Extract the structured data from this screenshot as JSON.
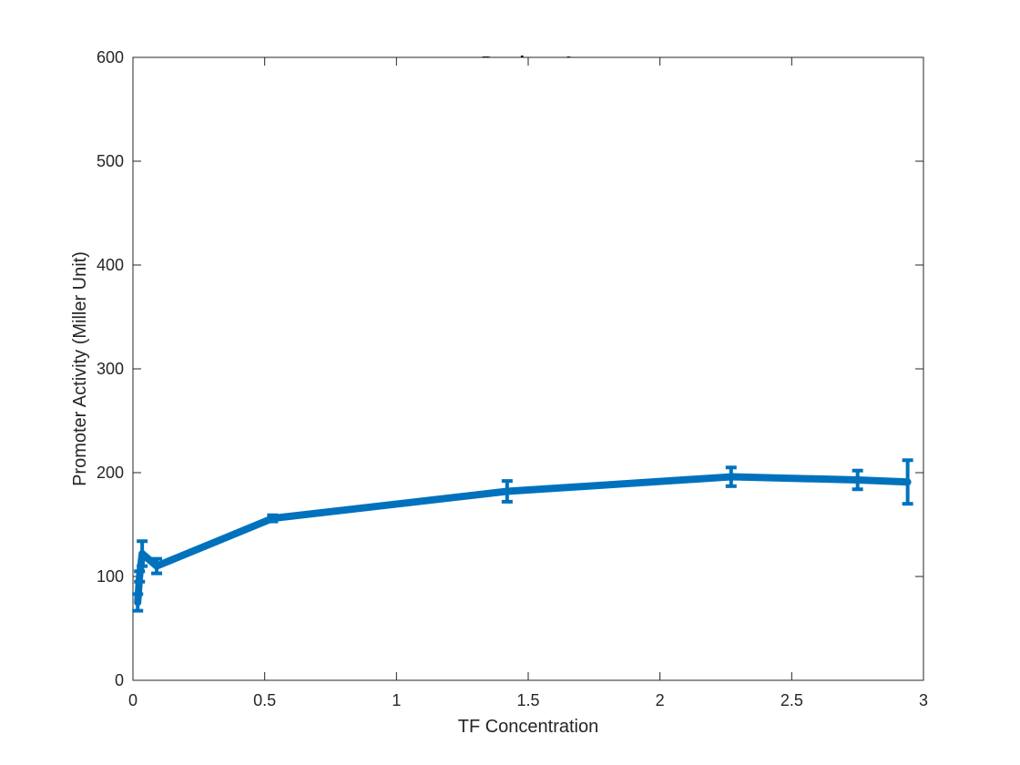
{
  "chart_data": {
    "type": "line",
    "title": "Pv-sigmaA",
    "xlabel": "TF Concentration",
    "ylabel": "Promoter Activity (Miller Unit)",
    "xlim": [
      0,
      3
    ],
    "ylim": [
      0,
      600
    ],
    "x_ticks": [
      0,
      0.5,
      1,
      1.5,
      2,
      2.5,
      3
    ],
    "x_tick_labels": [
      "0",
      "0.5",
      "1",
      "1.5",
      "2",
      "2.5",
      "3"
    ],
    "y_ticks": [
      0,
      100,
      200,
      300,
      400,
      500,
      600
    ],
    "y_tick_labels": [
      "0",
      "100",
      "200",
      "300",
      "400",
      "500",
      "600"
    ],
    "grid": false,
    "legend": "none",
    "series": [
      {
        "x": [
          0.018,
          0.025,
          0.035,
          0.09,
          0.53,
          1.42,
          2.27,
          2.75,
          2.94
        ],
        "y": [
          75,
          100,
          122,
          110,
          156,
          182,
          196,
          193,
          191
        ],
        "error": [
          8,
          5,
          12,
          7,
          3,
          10,
          9,
          9,
          21
        ],
        "color": "#0072BD"
      }
    ]
  }
}
